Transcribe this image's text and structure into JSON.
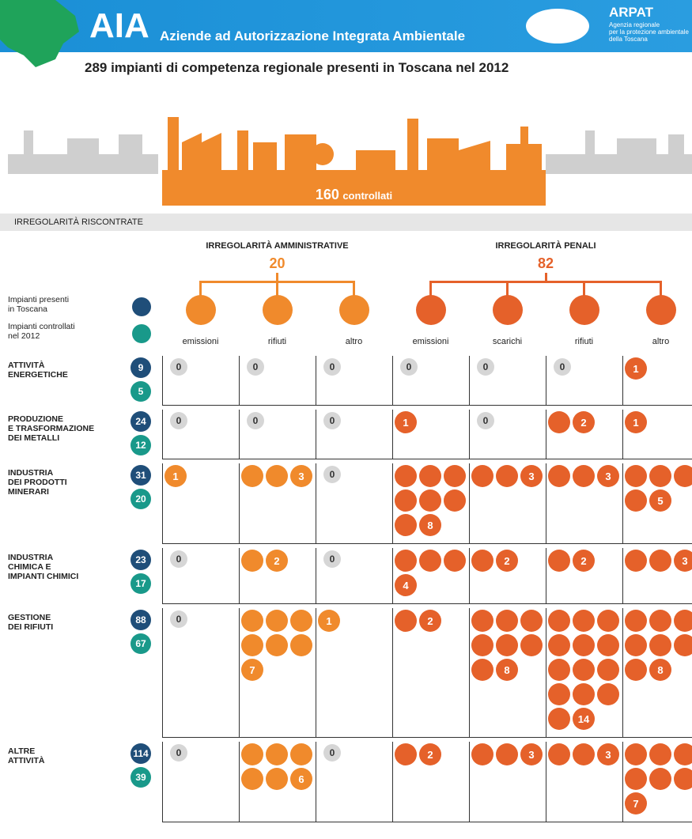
{
  "header": {
    "title": "AIA",
    "subtitle": "Aziende ad Autorizzazione Integrata Ambientale",
    "org": "ARPAT",
    "org_sub": [
      "Agenzia regionale",
      "per la protezione ambientale",
      "della Toscana"
    ],
    "headline": "289 impianti di competenza regionale presenti in Toscana nel 2012"
  },
  "controlled": {
    "count": 160,
    "label": "controllati"
  },
  "section": "IRREGOLARITÀ RISCONTRATE",
  "groups": [
    {
      "title": "IRREGOLARITÀ AMMINISTRATIVE",
      "total": 20,
      "color": "#f08a2c",
      "columns": [
        "emissioni",
        "rifiuti",
        "altro"
      ]
    },
    {
      "title": "IRREGOLARITÀ PENALI",
      "total": 82,
      "color": "#e5612a",
      "columns": [
        "emissioni",
        "scarichi",
        "rifiuti",
        "altro"
      ]
    }
  ],
  "legend": [
    {
      "label": [
        "Impianti presenti",
        "in Toscana"
      ],
      "color": "#1f4e79"
    },
    {
      "label": [
        "Impianti controllati",
        "nel 2012"
      ],
      "color": "#19998a"
    }
  ],
  "rows": [
    {
      "name": [
        "ATTIVITÀ",
        "ENERGETICHE"
      ],
      "present": 9,
      "controlled": 5,
      "counts": [
        0,
        0,
        0,
        0,
        0,
        0,
        1
      ]
    },
    {
      "name": [
        "PRODUZIONE",
        "E TRASFORMAZIONE",
        "DEI METALLI"
      ],
      "present": 24,
      "controlled": 12,
      "counts": [
        0,
        0,
        0,
        1,
        0,
        2,
        1
      ]
    },
    {
      "name": [
        "INDUSTRIA",
        "DEI PRODOTTI",
        "MINERARI"
      ],
      "present": 31,
      "controlled": 20,
      "counts": [
        1,
        3,
        0,
        8,
        3,
        3,
        5
      ]
    },
    {
      "name": [
        "INDUSTRIA",
        "CHIMICA E",
        "IMPIANTI CHIMICI"
      ],
      "present": 23,
      "controlled": 17,
      "counts": [
        0,
        2,
        0,
        4,
        2,
        2,
        3
      ]
    },
    {
      "name": [
        "GESTIONE",
        "DEI RIFIUTI"
      ],
      "present": 88,
      "controlled": 67,
      "counts": [
        0,
        7,
        1,
        2,
        8,
        14,
        8
      ]
    },
    {
      "name": [
        "ALTRE",
        "ATTIVITÀ"
      ],
      "present": 114,
      "controlled": 39,
      "counts": [
        0,
        6,
        0,
        2,
        3,
        3,
        7
      ]
    }
  ]
}
